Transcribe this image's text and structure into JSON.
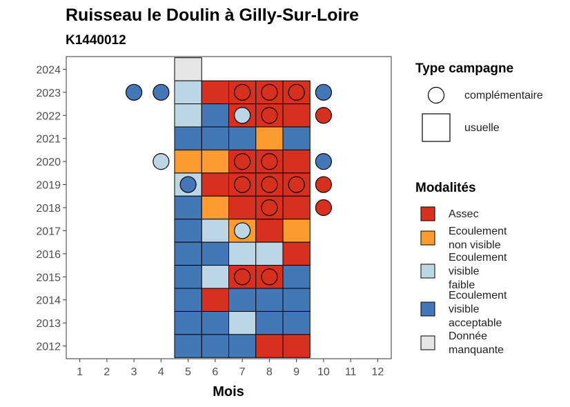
{
  "title": "Ruisseau le Doulin à Gilly-Sur-Loire",
  "subtitle": "K1440012",
  "colors": {
    "Assec": "#d7301f",
    "Ecoulement non visible": "#fd9b2e",
    "Ecoulement visible faible": "#bcd6e6",
    "Ecoulement visible acceptable": "#4377b8",
    "Donnée manquante": "#e5e5e5"
  },
  "legend_campaign": {
    "title": "Type campagne",
    "items": [
      {
        "shape": "circle",
        "label": "complémentaire"
      },
      {
        "shape": "square",
        "label": "usuelle"
      }
    ]
  },
  "legend_modalites": {
    "title": "Modalités",
    "items": [
      {
        "key": "Assec",
        "lines": [
          "Assec"
        ]
      },
      {
        "key": "Ecoulement non visible",
        "lines": [
          "Ecoulement",
          "non visible"
        ]
      },
      {
        "key": "Ecoulement visible faible",
        "lines": [
          "Ecoulement",
          "visible",
          "faible"
        ]
      },
      {
        "key": "Ecoulement visible acceptable",
        "lines": [
          "Ecoulement",
          "visible",
          "acceptable"
        ]
      },
      {
        "key": "Donnée manquante",
        "lines": [
          "Donnée",
          "manquante"
        ]
      }
    ]
  },
  "chart_data": {
    "type": "heatmap",
    "xlabel": "Mois",
    "ylabel": "",
    "x_ticks": [
      1,
      2,
      3,
      4,
      5,
      6,
      7,
      8,
      9,
      10,
      11,
      12
    ],
    "y_ticks": [
      2012,
      2013,
      2014,
      2015,
      2016,
      2017,
      2018,
      2019,
      2020,
      2021,
      2022,
      2023,
      2024
    ],
    "xlim": [
      0.5,
      12.5
    ],
    "ylim": [
      2011.45,
      2024.55
    ],
    "grid": false,
    "legend_position": "right",
    "usuelle": [
      {
        "year": 2024,
        "month": 5,
        "value": "Donnée manquante"
      },
      {
        "year": 2023,
        "month": 5,
        "value": "Ecoulement visible faible"
      },
      {
        "year": 2023,
        "month": 6,
        "value": "Assec"
      },
      {
        "year": 2023,
        "month": 7,
        "value": "Assec"
      },
      {
        "year": 2023,
        "month": 8,
        "value": "Assec"
      },
      {
        "year": 2023,
        "month": 9,
        "value": "Assec"
      },
      {
        "year": 2022,
        "month": 5,
        "value": "Ecoulement visible faible"
      },
      {
        "year": 2022,
        "month": 6,
        "value": "Ecoulement visible acceptable"
      },
      {
        "year": 2022,
        "month": 7,
        "value": "Assec"
      },
      {
        "year": 2022,
        "month": 8,
        "value": "Assec"
      },
      {
        "year": 2022,
        "month": 9,
        "value": "Assec"
      },
      {
        "year": 2021,
        "month": 5,
        "value": "Ecoulement visible acceptable"
      },
      {
        "year": 2021,
        "month": 6,
        "value": "Ecoulement visible acceptable"
      },
      {
        "year": 2021,
        "month": 7,
        "value": "Ecoulement visible acceptable"
      },
      {
        "year": 2021,
        "month": 8,
        "value": "Ecoulement non visible"
      },
      {
        "year": 2021,
        "month": 9,
        "value": "Ecoulement visible acceptable"
      },
      {
        "year": 2020,
        "month": 5,
        "value": "Ecoulement non visible"
      },
      {
        "year": 2020,
        "month": 6,
        "value": "Ecoulement non visible"
      },
      {
        "year": 2020,
        "month": 7,
        "value": "Assec"
      },
      {
        "year": 2020,
        "month": 8,
        "value": "Assec"
      },
      {
        "year": 2020,
        "month": 9,
        "value": "Assec"
      },
      {
        "year": 2019,
        "month": 5,
        "value": "Ecoulement visible faible"
      },
      {
        "year": 2019,
        "month": 6,
        "value": "Assec"
      },
      {
        "year": 2019,
        "month": 7,
        "value": "Assec"
      },
      {
        "year": 2019,
        "month": 8,
        "value": "Assec"
      },
      {
        "year": 2019,
        "month": 9,
        "value": "Assec"
      },
      {
        "year": 2018,
        "month": 5,
        "value": "Ecoulement visible acceptable"
      },
      {
        "year": 2018,
        "month": 6,
        "value": "Ecoulement non visible"
      },
      {
        "year": 2018,
        "month": 7,
        "value": "Assec"
      },
      {
        "year": 2018,
        "month": 8,
        "value": "Assec"
      },
      {
        "year": 2018,
        "month": 9,
        "value": "Assec"
      },
      {
        "year": 2017,
        "month": 5,
        "value": "Ecoulement visible acceptable"
      },
      {
        "year": 2017,
        "month": 6,
        "value": "Ecoulement visible faible"
      },
      {
        "year": 2017,
        "month": 7,
        "value": "Ecoulement non visible"
      },
      {
        "year": 2017,
        "month": 8,
        "value": "Assec"
      },
      {
        "year": 2017,
        "month": 9,
        "value": "Ecoulement non visible"
      },
      {
        "year": 2016,
        "month": 5,
        "value": "Ecoulement visible acceptable"
      },
      {
        "year": 2016,
        "month": 6,
        "value": "Ecoulement visible acceptable"
      },
      {
        "year": 2016,
        "month": 7,
        "value": "Ecoulement visible faible"
      },
      {
        "year": 2016,
        "month": 8,
        "value": "Ecoulement visible faible"
      },
      {
        "year": 2016,
        "month": 9,
        "value": "Assec"
      },
      {
        "year": 2015,
        "month": 5,
        "value": "Ecoulement visible acceptable"
      },
      {
        "year": 2015,
        "month": 6,
        "value": "Ecoulement visible faible"
      },
      {
        "year": 2015,
        "month": 7,
        "value": "Assec"
      },
      {
        "year": 2015,
        "month": 8,
        "value": "Assec"
      },
      {
        "year": 2015,
        "month": 9,
        "value": "Ecoulement visible acceptable"
      },
      {
        "year": 2014,
        "month": 5,
        "value": "Ecoulement visible acceptable"
      },
      {
        "year": 2014,
        "month": 6,
        "value": "Assec"
      },
      {
        "year": 2014,
        "month": 7,
        "value": "Ecoulement visible acceptable"
      },
      {
        "year": 2014,
        "month": 8,
        "value": "Ecoulement visible acceptable"
      },
      {
        "year": 2014,
        "month": 9,
        "value": "Ecoulement visible acceptable"
      },
      {
        "year": 2013,
        "month": 5,
        "value": "Ecoulement visible acceptable"
      },
      {
        "year": 2013,
        "month": 6,
        "value": "Ecoulement visible acceptable"
      },
      {
        "year": 2013,
        "month": 7,
        "value": "Ecoulement visible faible"
      },
      {
        "year": 2013,
        "month": 8,
        "value": "Ecoulement visible acceptable"
      },
      {
        "year": 2013,
        "month": 9,
        "value": "Ecoulement visible acceptable"
      },
      {
        "year": 2012,
        "month": 5,
        "value": "Ecoulement visible acceptable"
      },
      {
        "year": 2012,
        "month": 6,
        "value": "Ecoulement visible acceptable"
      },
      {
        "year": 2012,
        "month": 7,
        "value": "Ecoulement visible acceptable"
      },
      {
        "year": 2012,
        "month": 8,
        "value": "Assec"
      },
      {
        "year": 2012,
        "month": 9,
        "value": "Assec"
      }
    ],
    "complementaire": [
      {
        "year": 2023,
        "month": 3,
        "value": "Ecoulement visible acceptable"
      },
      {
        "year": 2023,
        "month": 4,
        "value": "Ecoulement visible acceptable"
      },
      {
        "year": 2023,
        "month": 7,
        "value": "Assec"
      },
      {
        "year": 2023,
        "month": 8,
        "value": "Assec"
      },
      {
        "year": 2023,
        "month": 9,
        "value": "Assec"
      },
      {
        "year": 2023,
        "month": 10,
        "value": "Ecoulement visible acceptable"
      },
      {
        "year": 2022,
        "month": 7,
        "value": "Ecoulement visible faible"
      },
      {
        "year": 2022,
        "month": 8,
        "value": "Assec"
      },
      {
        "year": 2022,
        "month": 10,
        "value": "Assec"
      },
      {
        "year": 2020,
        "month": 4,
        "value": "Ecoulement visible faible"
      },
      {
        "year": 2020,
        "month": 7,
        "value": "Assec"
      },
      {
        "year": 2020,
        "month": 8,
        "value": "Assec"
      },
      {
        "year": 2020,
        "month": 10,
        "value": "Ecoulement visible acceptable"
      },
      {
        "year": 2019,
        "month": 5,
        "value": "Ecoulement visible acceptable"
      },
      {
        "year": 2019,
        "month": 7,
        "value": "Assec"
      },
      {
        "year": 2019,
        "month": 8,
        "value": "Assec"
      },
      {
        "year": 2019,
        "month": 9,
        "value": "Assec"
      },
      {
        "year": 2019,
        "month": 10,
        "value": "Assec"
      },
      {
        "year": 2018,
        "month": 8,
        "value": "Assec"
      },
      {
        "year": 2018,
        "month": 10,
        "value": "Assec"
      },
      {
        "year": 2017,
        "month": 7,
        "value": "Ecoulement visible faible"
      },
      {
        "year": 2015,
        "month": 7,
        "value": "Assec"
      },
      {
        "year": 2015,
        "month": 8,
        "value": "Assec"
      }
    ]
  }
}
